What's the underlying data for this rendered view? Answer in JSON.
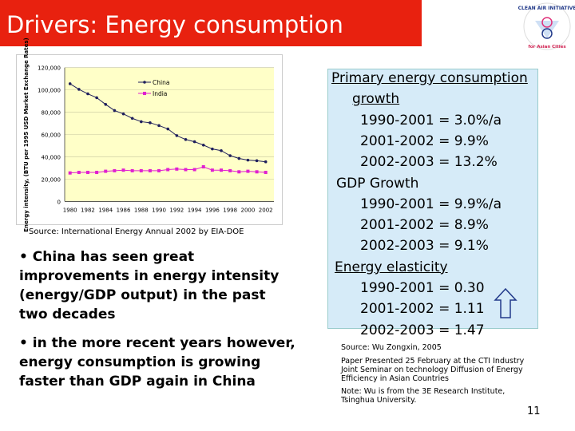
{
  "title": "Drivers: Energy consumption",
  "logo": {
    "text_top": "CLEAN AIR INITIATIVE",
    "text_bottom": "for Asian Cities"
  },
  "chart_data": {
    "type": "line",
    "ylabel": "Energy intensity, (BTU per 1995 USD Market Exchange Rates)",
    "x": [
      1980,
      1981,
      1982,
      1983,
      1984,
      1985,
      1986,
      1987,
      1988,
      1989,
      1990,
      1991,
      1992,
      1993,
      1994,
      1995,
      1996,
      1997,
      1998,
      1999,
      2000,
      2001,
      2002
    ],
    "xticks": [
      "1980",
      "1982",
      "1984",
      "1986",
      "1988",
      "1990",
      "1992",
      "1994",
      "1996",
      "1998",
      "2000",
      "2002"
    ],
    "yticks": [
      "0",
      "20,000",
      "40,000",
      "60,000",
      "80,000",
      "100,000",
      "120,000"
    ],
    "ylim": [
      0,
      120000
    ],
    "grid": true,
    "legend": "top-center",
    "series": [
      {
        "name": "China",
        "color": "#1f1f5c",
        "values": [
          105500,
          100500,
          96500,
          93000,
          87000,
          81500,
          78500,
          74500,
          71500,
          70500,
          68000,
          65000,
          59000,
          55500,
          53500,
          50500,
          47000,
          45500,
          41000,
          38500,
          37000,
          36500,
          35500
        ]
      },
      {
        "name": "India",
        "color": "#e020d0",
        "values": [
          25500,
          26000,
          26000,
          26000,
          27000,
          27500,
          28000,
          27500,
          27500,
          27500,
          27500,
          28500,
          29000,
          28500,
          28500,
          31000,
          28000,
          28000,
          27500,
          26500,
          27000,
          26500,
          26000
        ]
      }
    ]
  },
  "source1": "Source: International Energy Annual 2002 by EIA-DOE",
  "bullets": [
    "• China has seen great improvements in energy intensity (energy/GDP output) in the past two decades",
    "• in the more recent years however, energy consumption is growing faster than GDP again in China"
  ],
  "panel": {
    "lines": [
      {
        "t": "Primary energy consumption",
        "u": true
      },
      {
        "t": "growth",
        "u": true
      },
      {
        "t": "1990-2001 = 3.0%/a"
      },
      {
        "t": "2001-2002 = 9.9%"
      },
      {
        "t": "2002-2003 = 13.2%"
      },
      {
        "t": "GDP Growth"
      },
      {
        "t": "1990-2001 = 9.9%/a"
      },
      {
        "t": "2001-2002 = 8.9%"
      },
      {
        "t": "2002-2003 = 9.1%"
      },
      {
        "t": "Energy elasticity",
        "u": true
      },
      {
        "t": "1990-2001 = 0.30"
      },
      {
        "t": "2001-2002 = 1.11"
      },
      {
        "t": "2002-2003 = 1.47"
      }
    ]
  },
  "source2": "Source: Wu Zongxin, 2005",
  "paper": "Paper Presented 25 February at the CTI Industry Joint Seminar on technology Diffusion of Energy Efficiency in Asian Countries",
  "note": "Note: Wu is from the 3E Research Institute, Tsinghua University.",
  "page": "11"
}
